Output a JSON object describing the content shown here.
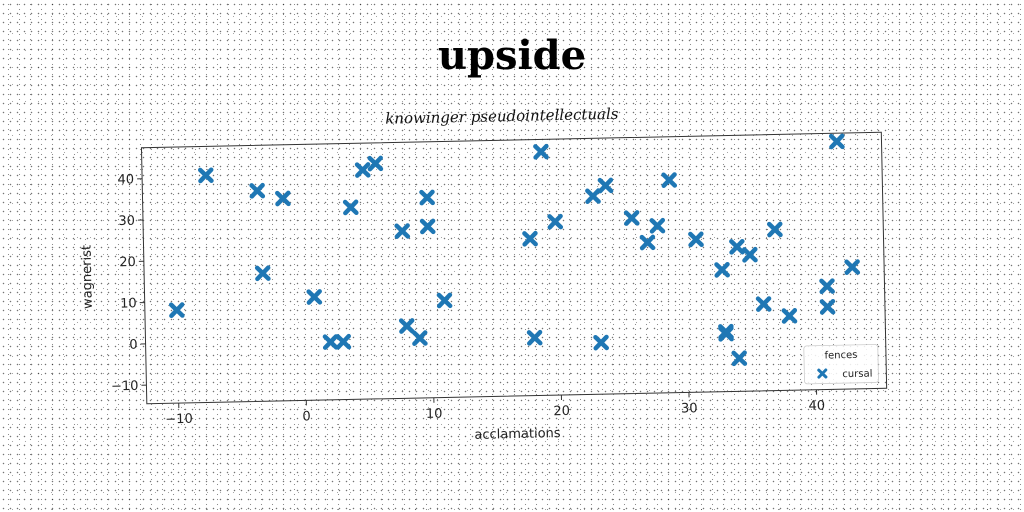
{
  "page": {
    "title": "upside"
  },
  "chart_data": {
    "type": "scatter",
    "title": "upside",
    "subtitle": "knowinger pseudointellectuals",
    "xlabel": "acclamations",
    "ylabel": "wagnerist",
    "xlim": [
      -12.5,
      45.5
    ],
    "ylim": [
      -14.5,
      47.5
    ],
    "xticks": [
      -10,
      0,
      10,
      20,
      30,
      40
    ],
    "yticks": [
      -10,
      0,
      10,
      20,
      30,
      40
    ],
    "xtick_labels": [
      "−10",
      "0",
      "10",
      "20",
      "30",
      "40"
    ],
    "ytick_labels": [
      "−10",
      "0",
      "10",
      "20",
      "30",
      "40"
    ],
    "grid": false,
    "legend": {
      "title": "fences",
      "position": "bottom-right"
    },
    "marker": "X",
    "series": [
      {
        "name": "cursal",
        "color": "#1f77b4",
        "points": [
          [
            -10.0,
            8.0
          ],
          [
            -7.5,
            40.5
          ],
          [
            -3.5,
            36.5
          ],
          [
            -3.2,
            16.5
          ],
          [
            -1.5,
            34.5
          ],
          [
            0.8,
            10.5
          ],
          [
            2.0,
            -0.5
          ],
          [
            3.0,
            -0.5
          ],
          [
            3.8,
            32.0
          ],
          [
            4.8,
            41.0
          ],
          [
            5.8,
            42.5
          ],
          [
            7.8,
            26.0
          ],
          [
            8.0,
            3.0
          ],
          [
            9.0,
            0.0
          ],
          [
            9.8,
            34.0
          ],
          [
            9.8,
            27.0
          ],
          [
            11.0,
            9.0
          ],
          [
            17.8,
            23.5
          ],
          [
            18.0,
            -0.5
          ],
          [
            18.8,
            44.5
          ],
          [
            19.8,
            27.5
          ],
          [
            22.8,
            33.5
          ],
          [
            23.2,
            -2.0
          ],
          [
            23.8,
            36.0
          ],
          [
            25.8,
            28.0
          ],
          [
            27.0,
            22.0
          ],
          [
            27.8,
            26.0
          ],
          [
            28.8,
            37.0
          ],
          [
            30.8,
            22.5
          ],
          [
            32.8,
            15.0
          ],
          [
            33.0,
            0.0
          ],
          [
            33.0,
            -0.5
          ],
          [
            34.0,
            20.5
          ],
          [
            34.0,
            -6.5
          ],
          [
            35.0,
            18.5
          ],
          [
            36.0,
            6.5
          ],
          [
            37.0,
            24.5
          ],
          [
            38.0,
            3.5
          ],
          [
            41.0,
            10.5
          ],
          [
            41.0,
            5.5
          ],
          [
            42.0,
            45.5
          ],
          [
            43.0,
            15.0
          ]
        ]
      }
    ]
  }
}
